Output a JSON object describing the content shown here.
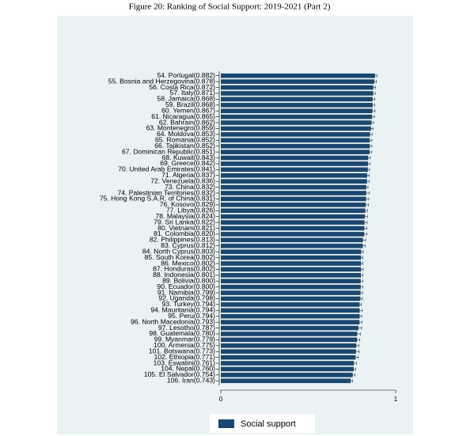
{
  "chart_data": {
    "type": "bar",
    "orientation": "horizontal",
    "title": "Figure 20: Ranking of Social Support: 2019-2021 (Part 2)",
    "categories": [
      "54. Portugal(0.882)",
      "55. Bosnia and Herzegovina(0.878)",
      "56. Costa Rica(0.872)",
      "57. Italy(0.871)",
      "58. Jamaica(0.868)",
      "59. Brazil(0.868)",
      "60. Yemen(0.867)",
      "61. Nicaragua(0.865)",
      "62. Bahrain(0.862)",
      "63. Montenegro(0.859)",
      "64. Moldova(0.853)",
      "65. Romania(0.852)",
      "66. Tajikistan(0.852)",
      "67. Dominican Republic(0.851)",
      "68. Kuwait(0.843)",
      "69. Greece(0.842)",
      "70. United Arab Emirates(0.841)",
      "71. Algeria(0.837)",
      "72. Venezuela(0.836)",
      "73. China(0.832)",
      "74. Palestinian Territories(0.832)",
      "75. Hong Kong S.A.R. of China(0.831)",
      "76. Kosovo(0.829)",
      "77. Libya(0.826)",
      "78. Malaysia(0.824)",
      "79. Sri Lanka(0.822)",
      "80. Vietnam(0.821)",
      "81. Colombia(0.820)",
      "82. Philippines(0.813)",
      "83. Cyprus(0.812)",
      "84. North Cyprus(0.803)",
      "85. South Korea(0.802)",
      "86. Mexico(0.802)",
      "87. Honduras(0.802)",
      "88. Indonesia(0.801)",
      "89. Bolivia(0.800)",
      "90. Ecuador(0.800)",
      "91. Namibia(0.799)",
      "92. Uganda(0.798)",
      "93. Turkey(0.794)",
      "94. Mauritania(0.794)",
      "95. Peru(0.794)",
      "96. North Macedonia(0.793)",
      "97. Lesotho(0.787)",
      "98. Guatemala(0.780)",
      "99. Myanmar(0.779)",
      "100. Armenia(0.775)",
      "101. Botswana(0.773)",
      "102. Ethiopia(0.771)",
      "103. Eswatini(0.761)",
      "104. Nepal(0.760)",
      "105. El Salvador(0.754)",
      "106. Iran(0.743)"
    ],
    "series": [
      {
        "name": "Social support",
        "color": "#1a476f",
        "values": [
          0.882,
          0.878,
          0.872,
          0.871,
          0.868,
          0.868,
          0.867,
          0.865,
          0.862,
          0.859,
          0.853,
          0.852,
          0.852,
          0.851,
          0.843,
          0.842,
          0.841,
          0.837,
          0.836,
          0.832,
          0.832,
          0.831,
          0.829,
          0.826,
          0.824,
          0.822,
          0.821,
          0.82,
          0.813,
          0.812,
          0.803,
          0.802,
          0.802,
          0.802,
          0.801,
          0.8,
          0.8,
          0.799,
          0.798,
          0.794,
          0.794,
          0.794,
          0.793,
          0.787,
          0.78,
          0.779,
          0.775,
          0.773,
          0.771,
          0.761,
          0.76,
          0.754,
          0.743
        ],
        "errors": [
          0.012,
          0.012,
          0.012,
          0.012,
          0.012,
          0.012,
          0.015,
          0.013,
          0.012,
          0.012,
          0.012,
          0.012,
          0.012,
          0.012,
          0.012,
          0.012,
          0.01,
          0.012,
          0.012,
          0.01,
          0.018,
          0.015,
          0.015,
          0.012,
          0.015,
          0.015,
          0.015,
          0.015,
          0.015,
          0.015,
          0.012,
          0.01,
          0.01,
          0.012,
          0.012,
          0.012,
          0.012,
          0.012,
          0.012,
          0.01,
          0.015,
          0.012,
          0.015,
          0.018,
          0.018,
          0.015,
          0.015,
          0.018,
          0.015,
          0.015,
          0.012,
          0.012,
          0.01
        ]
      }
    ],
    "xlim": [
      0,
      1
    ],
    "xticks": [
      0,
      1
    ],
    "legend": "bottom"
  }
}
